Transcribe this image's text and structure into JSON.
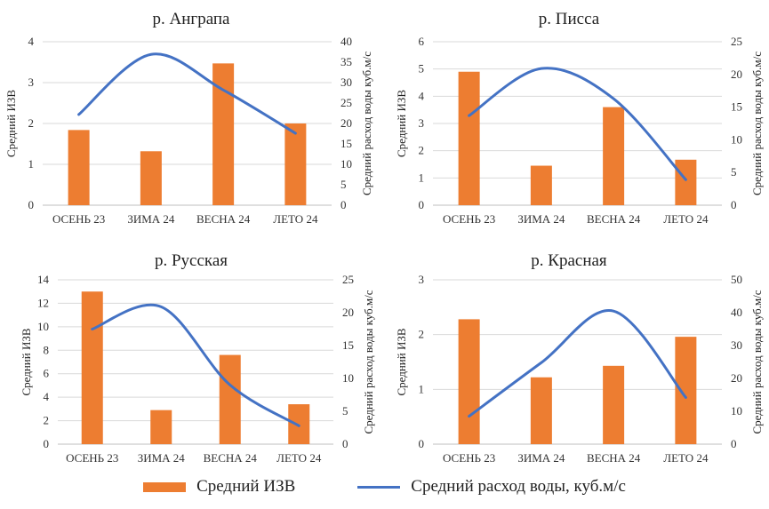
{
  "colors": {
    "bar": "#ED7D31",
    "line": "#4472C4",
    "grid": "#d9d9d9"
  },
  "legend": {
    "bar_label": "Средний ИЗВ",
    "line_label": "Средний расход воды, куб.м/с"
  },
  "chart_data": [
    {
      "type": "bar",
      "title": "р. Анграпа",
      "categories": [
        "ОСЕНЬ 23",
        "ЗИМА 24",
        "ВЕСНА 24",
        "ЛЕТО 24"
      ],
      "ylabel": "Средний ИЗВ",
      "y2label": "Средний расход воды куб.м/с",
      "ylim": [
        0,
        4
      ],
      "yticks": [
        0,
        1,
        2,
        3,
        4
      ],
      "y2lim": [
        0,
        40
      ],
      "y2ticks": [
        0,
        5,
        10,
        15,
        20,
        25,
        30,
        35,
        40
      ],
      "series": [
        {
          "name": "Средний ИЗВ",
          "type": "bar",
          "axis": "left",
          "values": [
            1.84,
            1.32,
            3.47,
            2.0
          ]
        },
        {
          "name": "Средний расход воды, куб.м/с",
          "type": "line",
          "axis": "right",
          "values": [
            22.2,
            36.9,
            28.2,
            17.6
          ]
        }
      ]
    },
    {
      "type": "bar",
      "title": "р. Писса",
      "categories": [
        "ОСЕНЬ 23",
        "ЗИМА 24",
        "ВЕСНА 24",
        "ЛЕТО 24"
      ],
      "ylabel": "Средний ИЗВ",
      "y2label": "Средний расход воды куб.м/с",
      "ylim": [
        0,
        6
      ],
      "yticks": [
        0,
        1,
        2,
        3,
        4,
        5,
        6
      ],
      "y2lim": [
        0,
        25
      ],
      "y2ticks": [
        0,
        5,
        10,
        15,
        20,
        25
      ],
      "series": [
        {
          "name": "Средний ИЗВ",
          "type": "bar",
          "axis": "left",
          "values": [
            4.9,
            1.45,
            3.6,
            1.67
          ]
        },
        {
          "name": "Средний расход воды, куб.м/с",
          "type": "line",
          "axis": "right",
          "values": [
            13.7,
            20.9,
            16.3,
            3.9
          ]
        }
      ]
    },
    {
      "type": "bar",
      "title": "р. Русская",
      "categories": [
        "ОСЕНЬ 23",
        "ЗИМА 24",
        "ВЕСНА 24",
        "ЛЕТО 24"
      ],
      "ylabel": "Средний ИЗВ",
      "y2label": "Средний расход воды куб.м/с",
      "ylim": [
        0,
        14
      ],
      "yticks": [
        0,
        2,
        4,
        6,
        8,
        10,
        12,
        14
      ],
      "y2lim": [
        0,
        25
      ],
      "y2ticks": [
        0,
        5,
        10,
        15,
        20,
        25
      ],
      "series": [
        {
          "name": "Средний ИЗВ",
          "type": "bar",
          "axis": "left",
          "values": [
            13.0,
            2.9,
            7.6,
            3.4
          ]
        },
        {
          "name": "Средний расход воды, куб.м/с",
          "type": "line",
          "axis": "right",
          "values": [
            17.5,
            20.9,
            9.0,
            2.8
          ]
        }
      ]
    },
    {
      "type": "bar",
      "title": "р. Красная",
      "categories": [
        "ОСЕНЬ 23",
        "ЗИМА 24",
        "ВЕСНА 24",
        "ЛЕТО 24"
      ],
      "ylabel": "Средний ИЗВ",
      "y2label": "Средний расход воды куб.м/с",
      "ylim": [
        0,
        3
      ],
      "yticks": [
        0,
        1,
        2,
        3
      ],
      "y2lim": [
        0,
        50
      ],
      "y2ticks": [
        0,
        10,
        20,
        30,
        40,
        50
      ],
      "series": [
        {
          "name": "Средний ИЗВ",
          "type": "bar",
          "axis": "left",
          "values": [
            2.28,
            1.22,
            1.43,
            1.96
          ]
        },
        {
          "name": "Средний расход воды, куб.м/с",
          "type": "line",
          "axis": "right",
          "values": [
            8.5,
            24.8,
            40.5,
            14.2
          ]
        }
      ]
    }
  ]
}
